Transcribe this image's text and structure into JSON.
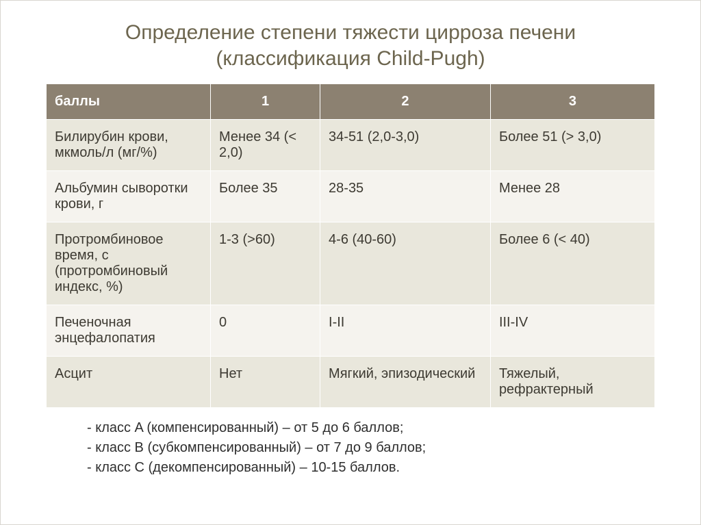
{
  "title_line1": "Определение степени тяжести цирроза печени",
  "title_line2": "(классификация Child-Pugh)",
  "table": {
    "header_bg": "#8c8171",
    "header_fg": "#ffffff",
    "row_odd_bg": "#e9e7dc",
    "row_even_bg": "#f5f3ee",
    "columns": [
      "баллы",
      "1",
      "2",
      "3"
    ],
    "rows": [
      [
        "Билирубин крови, мкмоль/л (мг/%)",
        "Менее 34 (< 2,0)",
        "34-51 (2,0-3,0)",
        "Более 51 (> 3,0)"
      ],
      [
        "Альбумин сыворотки крови, г",
        "Более 35",
        "28-35",
        "Менее 28"
      ],
      [
        "Протромбиновое время, с (протромбиновый индекс, %)",
        "1-3 (>60)",
        "4-6 (40-60)",
        "Более 6 (< 40)"
      ],
      [
        "Печеночная энцефалопатия",
        "0",
        "I-II",
        "III-IV"
      ],
      [
        "Асцит",
        "Нет",
        "Мягкий, эпизодический",
        "Тяжелый, рефрактерный"
      ]
    ]
  },
  "notes": [
    "- класс A (компенсированный) – от 5 до 6 баллов;",
    "- класс B (субкомпенсированный) – от 7 до 9 баллов;",
    "- класс C (декомпенсированный) – 10-15 баллов."
  ]
}
